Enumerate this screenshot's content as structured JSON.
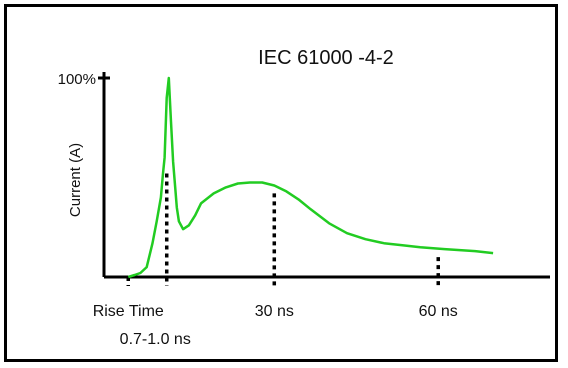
{
  "chart_data": {
    "type": "line",
    "title": "IEC 61000 -4-2",
    "xlabel": "",
    "ylabel": "Current (A)",
    "y_tick_label": "100%",
    "xlim": [
      -4.6,
      80
    ],
    "ylim": [
      0,
      100
    ],
    "series": [
      {
        "color": "#22cc22",
        "x": [
          0,
          1.2,
          2.3,
          3.5,
          4.6,
          5.4,
          6.2,
          6.6,
          6.9,
          7.3,
          7.7,
          8.1,
          8.5,
          8.9,
          9.2,
          9.6,
          10.4,
          11.5,
          12.7,
          13.8,
          16.2,
          18.5,
          20.8,
          23.1,
          25.4,
          27.7,
          30.0,
          32.3,
          34.6,
          38.1,
          41.5,
          45.0,
          48.5,
          52.0,
          55.4,
          60.0,
          65.8,
          69.2
        ],
        "y": [
          0,
          1,
          2,
          5,
          17,
          28,
          40,
          52,
          60,
          90,
          100,
          78,
          58,
          45,
          35,
          28,
          24,
          26,
          31,
          37,
          42,
          45,
          47,
          47.5,
          47.5,
          46,
          43,
          39,
          34,
          27,
          22,
          19,
          17,
          16,
          15,
          14,
          13,
          12
        ]
      }
    ],
    "markers": [
      {
        "x": 0,
        "y": 0,
        "label": "Rise Time",
        "sublabel": "0.7-1.0 ns"
      },
      {
        "x": 7.3,
        "y": 52,
        "label": ""
      },
      {
        "x": 27.7,
        "y": 42,
        "label": "30 ns"
      },
      {
        "x": 58.8,
        "y": 10,
        "label": "60 ns"
      }
    ]
  }
}
